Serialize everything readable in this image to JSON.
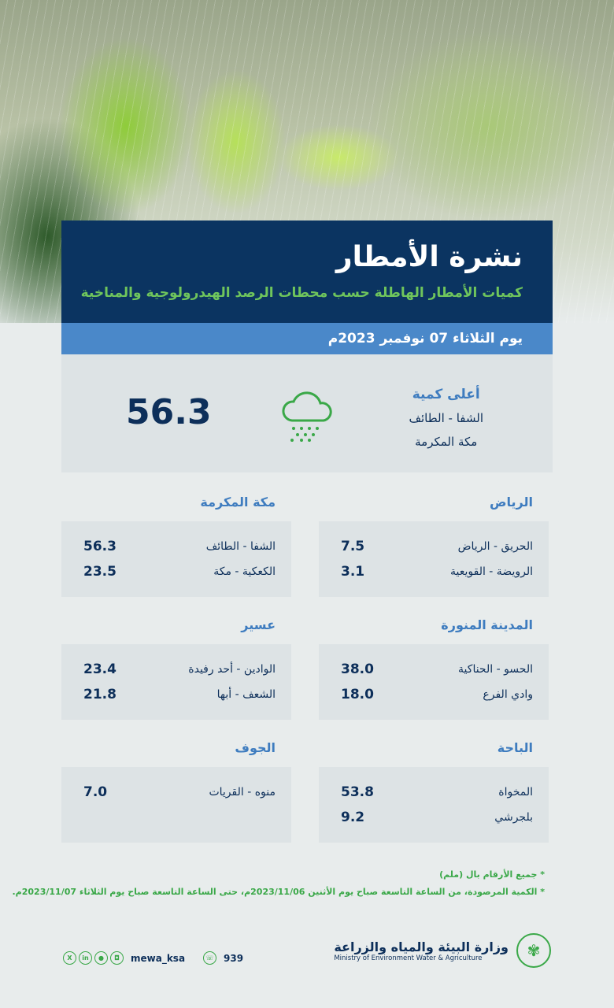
{
  "header": {
    "title": "نشرة الأمطار",
    "subtitle": "كميات الأمطار الهاطلة حسب محطات الرصد الهيدرولوجية والمناخية",
    "date": "يوم الثلاثاء 07 نوفمبر 2023م"
  },
  "highest": {
    "label": "أعلى كمية",
    "station": "الشفا - الطائف",
    "region": "مكة المكرمة",
    "value": "56.3",
    "icon": "rain-cloud-icon"
  },
  "regions": [
    {
      "name": "الرياض",
      "stations": [
        {
          "name": "الحريق - الرياض",
          "value": "7.5"
        },
        {
          "name": "الرويضة - القويعية",
          "value": "3.1"
        }
      ]
    },
    {
      "name": "مكة المكرمة",
      "stations": [
        {
          "name": "الشفا - الطائف",
          "value": "56.3"
        },
        {
          "name": "الكعكية - مكة",
          "value": "23.5"
        }
      ]
    },
    {
      "name": "المدينة المنورة",
      "stations": [
        {
          "name": "الحسو - الحناكية",
          "value": "38.0"
        },
        {
          "name": "وادي الفرع",
          "value": "18.0"
        }
      ]
    },
    {
      "name": "عسير",
      "stations": [
        {
          "name": "الوادين - أحد رفيدة",
          "value": "23.4"
        },
        {
          "name": "الشعف - أبها",
          "value": "21.8"
        }
      ]
    },
    {
      "name": "الباحة",
      "stations": [
        {
          "name": "المخواة",
          "value": "53.8"
        },
        {
          "name": "بلجرشي",
          "value": "9.2"
        }
      ]
    },
    {
      "name": "الجوف",
      "stations": [
        {
          "name": "منوه - القريات",
          "value": "7.0"
        }
      ]
    }
  ],
  "notes": [
    "* جميع الأرقام بال (ملم)",
    "* الكمية المرصودة، من الساعة التاسعة صباح يوم الأثنين 2023/11/06م، حتى الساعة التاسعة صباح يوم الثلاثاء 2023/11/07م."
  ],
  "footer": {
    "ministry_ar": "وزارة البيئة والمياه والزراعة",
    "ministry_en": "Ministry of Environment Water & Agriculture",
    "handle": "mewa_ksa",
    "phone": "939",
    "accent": "#3aa848"
  },
  "colors": {
    "navy": "#0b3461",
    "blue": "#4a88c9",
    "green": "#6fc55c"
  }
}
